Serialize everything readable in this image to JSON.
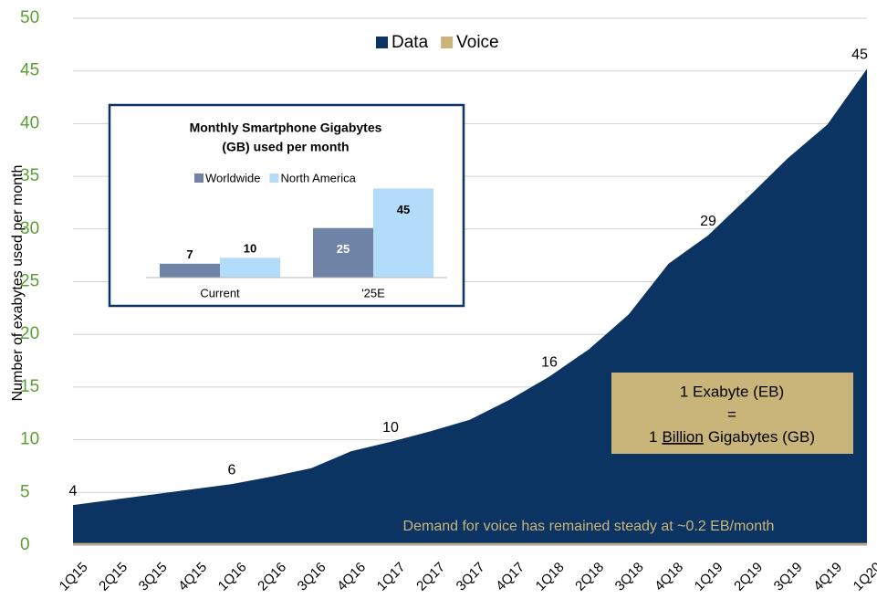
{
  "chart_data": [
    {
      "type": "area",
      "ylabel": "Number of exabytes used per month",
      "categories": [
        "1Q15",
        "2Q15",
        "3Q15",
        "4Q15",
        "1Q16",
        "2Q16",
        "3Q16",
        "4Q16",
        "1Q17",
        "2Q17",
        "3Q17",
        "4Q17",
        "1Q18",
        "2Q18",
        "3Q18",
        "4Q18",
        "1Q19",
        "2Q19",
        "3Q19",
        "4Q19",
        "1Q20"
      ],
      "series": [
        {
          "name": "Data",
          "color": "#0b3463",
          "values": [
            3.6,
            4.1,
            4.6,
            5.1,
            5.6,
            6.3,
            7.1,
            8.7,
            9.6,
            10.6,
            11.7,
            13.6,
            15.8,
            18.4,
            21.7,
            26.5,
            29.2,
            32.8,
            36.5,
            39.7,
            45
          ],
          "value_labels": [
            "4",
            null,
            null,
            null,
            "6",
            null,
            null,
            null,
            "10",
            null,
            null,
            null,
            "16",
            null,
            null,
            null,
            "29",
            null,
            null,
            null,
            "45"
          ]
        },
        {
          "name": "Voice",
          "color": "#c9b57a",
          "values": [
            0.2,
            0.2,
            0.2,
            0.2,
            0.2,
            0.2,
            0.2,
            0.2,
            0.2,
            0.2,
            0.2,
            0.2,
            0.2,
            0.2,
            0.2,
            0.2,
            0.2,
            0.2,
            0.2,
            0.2,
            0.2
          ]
        }
      ],
      "ylim": [
        0,
        50
      ],
      "yticks": [
        0,
        5,
        10,
        15,
        20,
        25,
        30,
        35,
        40,
        45,
        50
      ],
      "grid": true,
      "legend": "top",
      "callout": {
        "line1": "1 Exabyte (EB)",
        "equals": "=",
        "line3_pre": "1",
        "line3_underlined": "Billion",
        "line3_post": "Gigabytes (GB)"
      },
      "annotation": "Demand for voice has remained steady at ~0.2 EB/month"
    },
    {
      "type": "bar",
      "title": [
        "Monthly Smartphone Gigabytes",
        "(GB) used per month"
      ],
      "categories": [
        "Current",
        "'25E"
      ],
      "series": [
        {
          "name": "Worldwide",
          "color": "#6f83a6",
          "values": [
            7,
            25
          ]
        },
        {
          "name": "North America",
          "color": "#b3dcfa",
          "values": [
            10,
            45
          ]
        }
      ],
      "legend": "top"
    }
  ]
}
